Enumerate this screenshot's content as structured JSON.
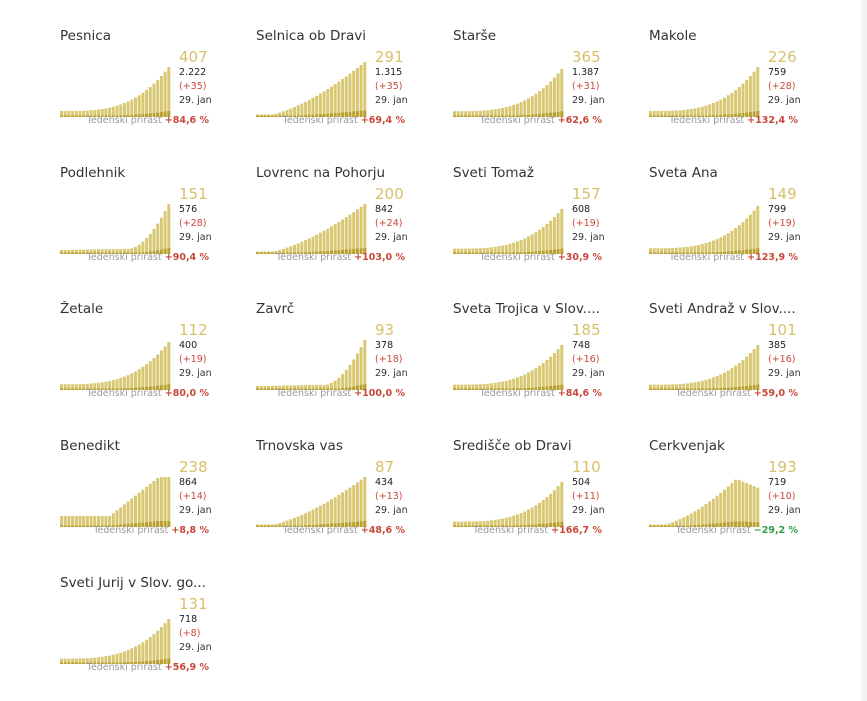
{
  "labels": {
    "growth_label": "Tedenski prirast"
  },
  "colors": {
    "light_bar": "#d9c873",
    "dark_bar": "#b8a030",
    "total_text": "#d8c06a",
    "delta_text": "#c8473a",
    "pos_growth": "#c8473a",
    "neg_growth": "#2f9e44"
  },
  "chart_data": [
    {
      "type": "bar",
      "title": "Pesnica",
      "total": "407",
      "cumulative": "2.222",
      "delta": "(+35)",
      "date": "29. jan",
      "growth": "+84,6 %",
      "trend": "exp",
      "rise": 50
    },
    {
      "type": "bar",
      "title": "Selnica ob Dravi",
      "total": "291",
      "cumulative": "1.315",
      "delta": "(+35)",
      "date": "29. jan",
      "growth": "+69,4 %",
      "trend": "smooth",
      "rise": 55
    },
    {
      "type": "bar",
      "title": "Starše",
      "total": "365",
      "cumulative": "1.387",
      "delta": "(+31)",
      "date": "29. jan",
      "growth": "+62,6 %",
      "trend": "exp",
      "rise": 48
    },
    {
      "type": "bar",
      "title": "Makole",
      "total": "226",
      "cumulative": "759",
      "delta": "(+28)",
      "date": "29. jan",
      "growth": "+132,4 %",
      "trend": "exp",
      "rise": 50
    },
    {
      "type": "bar",
      "title": "Podlehnik",
      "total": "151",
      "cumulative": "576",
      "delta": "(+28)",
      "date": "29. jan",
      "growth": "+90,4 %",
      "trend": "late",
      "rise": 50
    },
    {
      "type": "bar",
      "title": "Lovrenc na Pohorju",
      "total": "200",
      "cumulative": "842",
      "delta": "(+24)",
      "date": "29. jan",
      "growth": "+103,0 %",
      "trend": "smooth",
      "rise": 50
    },
    {
      "type": "bar",
      "title": "Sveti Tomaž",
      "total": "157",
      "cumulative": "608",
      "delta": "(+19)",
      "date": "29. jan",
      "growth": "+30,9 %",
      "trend": "exp",
      "rise": 45
    },
    {
      "type": "bar",
      "title": "Sveta Ana",
      "total": "149",
      "cumulative": "799",
      "delta": "(+19)",
      "date": "29. jan",
      "growth": "+123,9 %",
      "trend": "exp",
      "rise": 48
    },
    {
      "type": "bar",
      "title": "Žetale",
      "total": "112",
      "cumulative": "400",
      "delta": "(+19)",
      "date": "29. jan",
      "growth": "+80,0 %",
      "trend": "exp",
      "rise": 48
    },
    {
      "type": "bar",
      "title": "Zavrč",
      "total": "93",
      "cumulative": "378",
      "delta": "(+18)",
      "date": "29. jan",
      "growth": "+100,0 %",
      "trend": "late",
      "rise": 50
    },
    {
      "type": "bar",
      "title": "Sveta Trojica v Slov....",
      "total": "185",
      "cumulative": "748",
      "delta": "(+16)",
      "date": "29. jan",
      "growth": "+84,6 %",
      "trend": "exp",
      "rise": 45
    },
    {
      "type": "bar",
      "title": "Sveti Andraž v Slov....",
      "total": "101",
      "cumulative": "385",
      "delta": "(+16)",
      "date": "29. jan",
      "growth": "+59,0 %",
      "trend": "exp",
      "rise": 45
    },
    {
      "type": "bar",
      "title": "Benedikt",
      "total": "238",
      "cumulative": "864",
      "delta": "(+14)",
      "date": "29. jan",
      "growth": "+8,8 %",
      "trend": "plateau",
      "rise": 50
    },
    {
      "type": "bar",
      "title": "Trnovska vas",
      "total": "87",
      "cumulative": "434",
      "delta": "(+13)",
      "date": "29. jan",
      "growth": "+48,6 %",
      "trend": "smooth",
      "rise": 50
    },
    {
      "type": "bar",
      "title": "Središče ob Dravi",
      "total": "110",
      "cumulative": "504",
      "delta": "(+11)",
      "date": "29. jan",
      "growth": "+166,7 %",
      "trend": "exp",
      "rise": 45
    },
    {
      "type": "bar",
      "title": "Cerkvenjak",
      "total": "193",
      "cumulative": "719",
      "delta": "(+10)",
      "date": "29. jan",
      "growth": "−29,2 %",
      "trend": "hump",
      "rise": 48
    },
    {
      "type": "bar",
      "title": "Sveti Jurij v Slov. go...",
      "total": "131",
      "cumulative": "718",
      "delta": "(+8)",
      "date": "29. jan",
      "growth": "+56,9 %",
      "trend": "exp",
      "rise": 45
    }
  ]
}
